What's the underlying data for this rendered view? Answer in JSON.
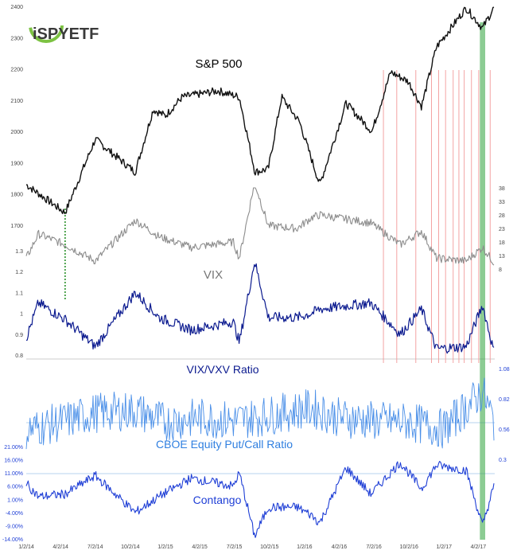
{
  "logo": {
    "text": "iSPYETF"
  },
  "colors": {
    "spx": "#111111",
    "vix": "#8c8c8c",
    "ratio": "#0b1a8f",
    "putcall": "#4a8fe8",
    "contango": "#1f3fd6",
    "highlight_band": "#2ea33a",
    "signal_lines": "#f29a9a",
    "dotted_marker": "#1c8a1c",
    "ref_line": "#9fc4ea"
  },
  "x_axis": {
    "tick_labels": [
      "1/2/14",
      "4/2/14",
      "7/2/14",
      "10/2/14",
      "1/2/15",
      "4/2/15",
      "7/2/15",
      "10/2/15",
      "1/2/16",
      "4/2/16",
      "7/2/16",
      "10/2/16",
      "1/2/17",
      "4/2/17"
    ]
  },
  "chart_data": [
    {
      "type": "line",
      "title": "S&P 500",
      "axis_side": "left",
      "y_ticks": [
        "2400",
        "2300",
        "2200",
        "2100",
        "2000",
        "1900",
        "1800",
        "1700"
      ],
      "ylim": [
        1700,
        2400
      ],
      "series": [
        {
          "name": "S&P 500",
          "x": [
            "1/2/14",
            "4/14/14",
            "7/2/14",
            "10/15/14",
            "12/1/14",
            "1/2/15",
            "2/15/15",
            "5/20/15",
            "7/15/15",
            "8/25/15",
            "9/29/15",
            "11/3/15",
            "12/20/15",
            "2/11/16",
            "4/20/16",
            "6/27/16",
            "8/15/16",
            "9/30/16",
            "11/4/16",
            "12/13/16",
            "3/1/17",
            "4/13/17",
            "5/15/17"
          ],
          "values": [
            1830,
            1740,
            1975,
            1870,
            2070,
            2050,
            2110,
            2130,
            2110,
            1870,
            1880,
            2110,
            2030,
            1830,
            2090,
            2000,
            2190,
            2160,
            2080,
            2270,
            2395,
            2330,
            2400
          ]
        }
      ]
    },
    {
      "type": "line",
      "title": "VIX",
      "axis_side": "right",
      "y_ticks": [
        "38",
        "33",
        "28",
        "23",
        "18",
        "13",
        "8"
      ],
      "ylim": [
        8,
        38
      ],
      "series": [
        {
          "name": "VIX",
          "x": [
            "1/2/14",
            "2/3/14",
            "4/14/14",
            "7/2/14",
            "10/15/14",
            "12/16/14",
            "3/10/15",
            "6/29/15",
            "7/15/15",
            "8/24/15",
            "9/29/15",
            "12/14/15",
            "1/20/16",
            "2/11/16",
            "6/24/16",
            "9/9/16",
            "11/4/16",
            "12/13/16",
            "3/1/17",
            "4/13/17",
            "5/15/17"
          ],
          "values": [
            12,
            21,
            17,
            11,
            26,
            20,
            16,
            18,
            12,
            40,
            24,
            23,
            27,
            28,
            25,
            17,
            22,
            12,
            11,
            16,
            10
          ]
        }
      ]
    },
    {
      "type": "line",
      "title": "VIX/VXV Ratio",
      "axis_side": "left",
      "y_ticks": [
        "1.3",
        "1.2",
        "1.1",
        "1",
        "0.9",
        "0.8"
      ],
      "ylim": [
        0.8,
        1.3
      ],
      "series": [
        {
          "name": "VIX/VXV Ratio",
          "x": [
            "1/2/14",
            "2/3/14",
            "4/14/14",
            "7/2/14",
            "10/15/14",
            "12/16/14",
            "3/10/15",
            "6/29/15",
            "7/15/15",
            "8/24/15",
            "9/29/15",
            "12/14/15",
            "1/20/16",
            "2/11/16",
            "6/24/16",
            "9/9/16",
            "11/4/16",
            "12/13/16",
            "3/1/17",
            "4/13/17",
            "5/15/17"
          ],
          "values": [
            0.88,
            1.05,
            0.97,
            0.84,
            1.1,
            0.98,
            0.92,
            0.96,
            0.86,
            1.25,
            0.98,
            0.98,
            1.0,
            1.02,
            1.05,
            0.9,
            1.02,
            0.83,
            0.84,
            1.04,
            0.8
          ]
        }
      ]
    },
    {
      "type": "line",
      "title": "CBOE Equity Put/Call Ratio",
      "axis_side": "right",
      "y_ticks": [
        "1.08",
        "0.82",
        "0.56",
        "0.3"
      ],
      "ylim": [
        0.3,
        1.08
      ],
      "series": [
        {
          "name": "CBOE Equity Put/Call Ratio",
          "x": [
            "1/2/14",
            "4/14/14",
            "7/2/14",
            "10/15/14",
            "1/2/15",
            "4/2/15",
            "7/2/15",
            "10/2/15",
            "1/20/16",
            "4/2/16",
            "7/2/16",
            "10/2/16",
            "1/2/17",
            "4/13/17",
            "5/15/17"
          ],
          "values": [
            0.55,
            0.63,
            0.7,
            0.72,
            0.62,
            0.66,
            0.63,
            0.68,
            0.74,
            0.66,
            0.63,
            0.62,
            0.56,
            0.88,
            0.6
          ]
        }
      ]
    },
    {
      "type": "line",
      "title": "Contango",
      "axis_side": "left",
      "y_ticks": [
        "21.00%",
        "16.00%",
        "11.00%",
        "6.00%",
        "1.00%",
        "-4.00%",
        "-9.00%",
        "-14.00%"
      ],
      "ylim": [
        -14,
        21
      ],
      "series": [
        {
          "name": "Contango",
          "x": [
            "1/2/14",
            "2/3/14",
            "4/14/14",
            "7/2/14",
            "10/15/14",
            "12/16/14",
            "3/10/15",
            "6/29/15",
            "7/15/15",
            "8/24/15",
            "9/29/15",
            "12/14/15",
            "1/20/16",
            "2/11/16",
            "4/20/16",
            "6/24/16",
            "9/9/16",
            "11/4/16",
            "12/13/16",
            "3/1/17",
            "4/13/17",
            "5/15/17"
          ],
          "values": [
            7,
            2,
            3,
            10,
            -4,
            2,
            9,
            6,
            11,
            -13,
            -2,
            -2,
            -5,
            -8,
            13,
            3,
            15,
            5,
            14,
            12,
            -9,
            7
          ]
        }
      ]
    }
  ],
  "annotations": {
    "signal_dates": [
      "7/27/16",
      "8/31/16",
      "10/20/16",
      "11/30/16",
      "12/19/16",
      "1/6/17",
      "1/26/17",
      "2/10/17",
      "2/24/17",
      "3/15/17",
      "4/3/17",
      "5/3/17"
    ],
    "highlight_band_range": [
      "4/6/17",
      "4/20/17"
    ],
    "dotted_marker_date": "4/14/14"
  }
}
